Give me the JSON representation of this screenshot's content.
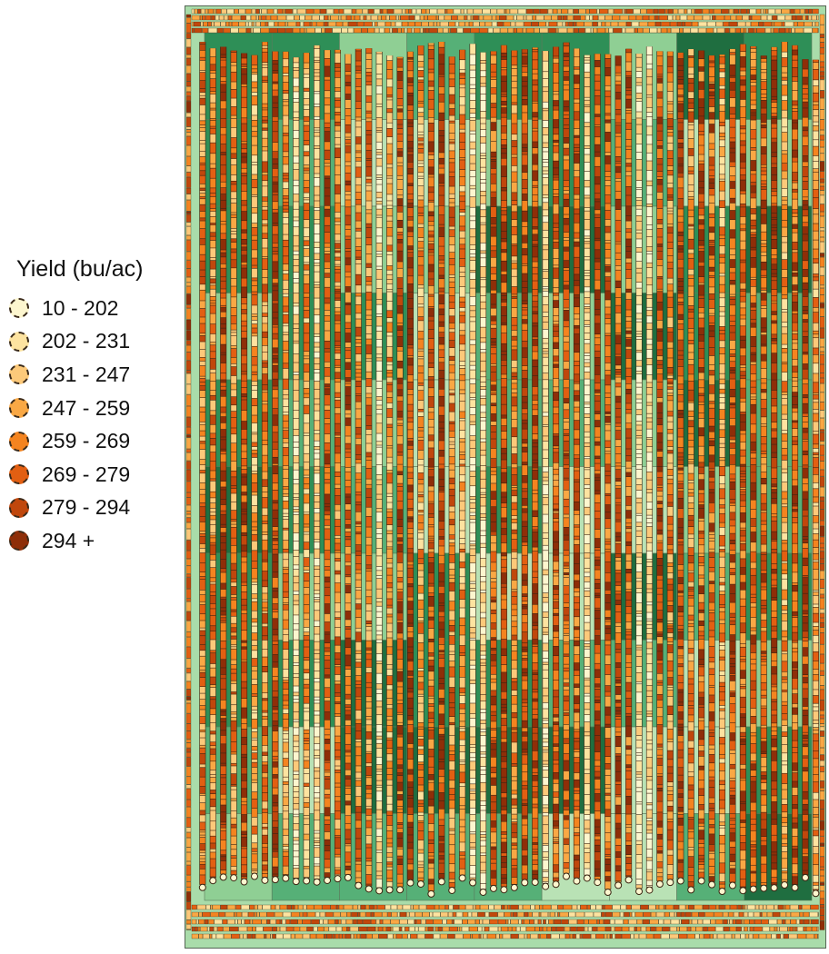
{
  "legend": {
    "title": "Yield (bu/ac)",
    "items": [
      {
        "label": "10 - 202",
        "color": "#fdf6cf"
      },
      {
        "label": "202 - 231",
        "color": "#fde3a0"
      },
      {
        "label": "231 - 247",
        "color": "#fcc97a"
      },
      {
        "label": "247 - 259",
        "color": "#f9a845"
      },
      {
        "label": "259 - 269",
        "color": "#f48420"
      },
      {
        "label": "269 - 279",
        "color": "#e25f12"
      },
      {
        "label": "279 - 294",
        "color": "#c0470c"
      },
      {
        "label": "294 +",
        "color": "#8e2e08"
      }
    ]
  },
  "map": {
    "background_colors": [
      "#8fcf94",
      "#56b077",
      "#2e8f57",
      "#b9e2b5",
      "#1f6e40"
    ],
    "pass_count": 60,
    "grid_rows": 10,
    "grid_cols": 9
  }
}
